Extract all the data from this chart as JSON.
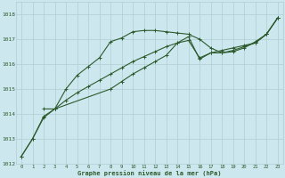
{
  "bg_color": "#cce8ee",
  "line_color": "#2d5a2d",
  "grid_color": "#b0cdd4",
  "xlabel": "Graphe pression niveau de la mer (hPa)",
  "ylabel_ticks": [
    1012,
    1013,
    1014,
    1015,
    1016,
    1017,
    1018
  ],
  "xticks": [
    0,
    1,
    2,
    3,
    4,
    5,
    6,
    7,
    8,
    9,
    10,
    11,
    12,
    13,
    14,
    15,
    16,
    17,
    18,
    19,
    20,
    21,
    22,
    23
  ],
  "xlim": [
    -0.5,
    23.5
  ],
  "ylim": [
    1012.0,
    1018.5
  ],
  "series1_x": [
    0,
    1,
    2,
    3,
    4,
    5,
    6,
    7,
    8,
    9,
    10,
    11,
    12,
    13,
    14,
    15,
    16,
    17,
    18,
    19,
    20,
    21,
    22,
    23
  ],
  "series1_y": [
    1012.3,
    1013.0,
    1013.85,
    1014.2,
    1014.55,
    1014.85,
    1015.1,
    1015.35,
    1015.6,
    1015.85,
    1016.1,
    1016.3,
    1016.5,
    1016.7,
    1016.85,
    1016.95,
    1016.25,
    1016.45,
    1016.55,
    1016.65,
    1016.75,
    1016.85,
    1017.2,
    1017.85
  ],
  "series2_x": [
    0,
    1,
    2,
    3,
    4,
    5,
    6,
    7,
    8,
    9,
    10,
    11,
    12,
    13,
    14,
    15,
    16,
    17,
    18,
    19,
    20,
    21,
    22,
    23
  ],
  "series2_y": [
    1012.3,
    1013.0,
    1013.9,
    1014.2,
    1015.0,
    1015.55,
    1015.9,
    1016.25,
    1016.9,
    1017.05,
    1017.3,
    1017.35,
    1017.35,
    1017.3,
    1017.25,
    1017.2,
    1017.0,
    1016.65,
    1016.45,
    1016.5,
    1016.65,
    1016.9,
    1017.2,
    1017.85
  ],
  "series3_x": [
    2,
    3,
    8,
    9,
    10,
    11,
    12,
    13,
    14,
    15,
    16,
    17,
    18,
    19,
    20,
    21,
    22,
    23
  ],
  "series3_y": [
    1014.2,
    1014.2,
    1015.0,
    1015.3,
    1015.6,
    1015.85,
    1016.1,
    1016.35,
    1016.85,
    1017.1,
    1016.2,
    1016.45,
    1016.45,
    1016.55,
    1016.7,
    1016.85,
    1017.2,
    1017.85
  ]
}
